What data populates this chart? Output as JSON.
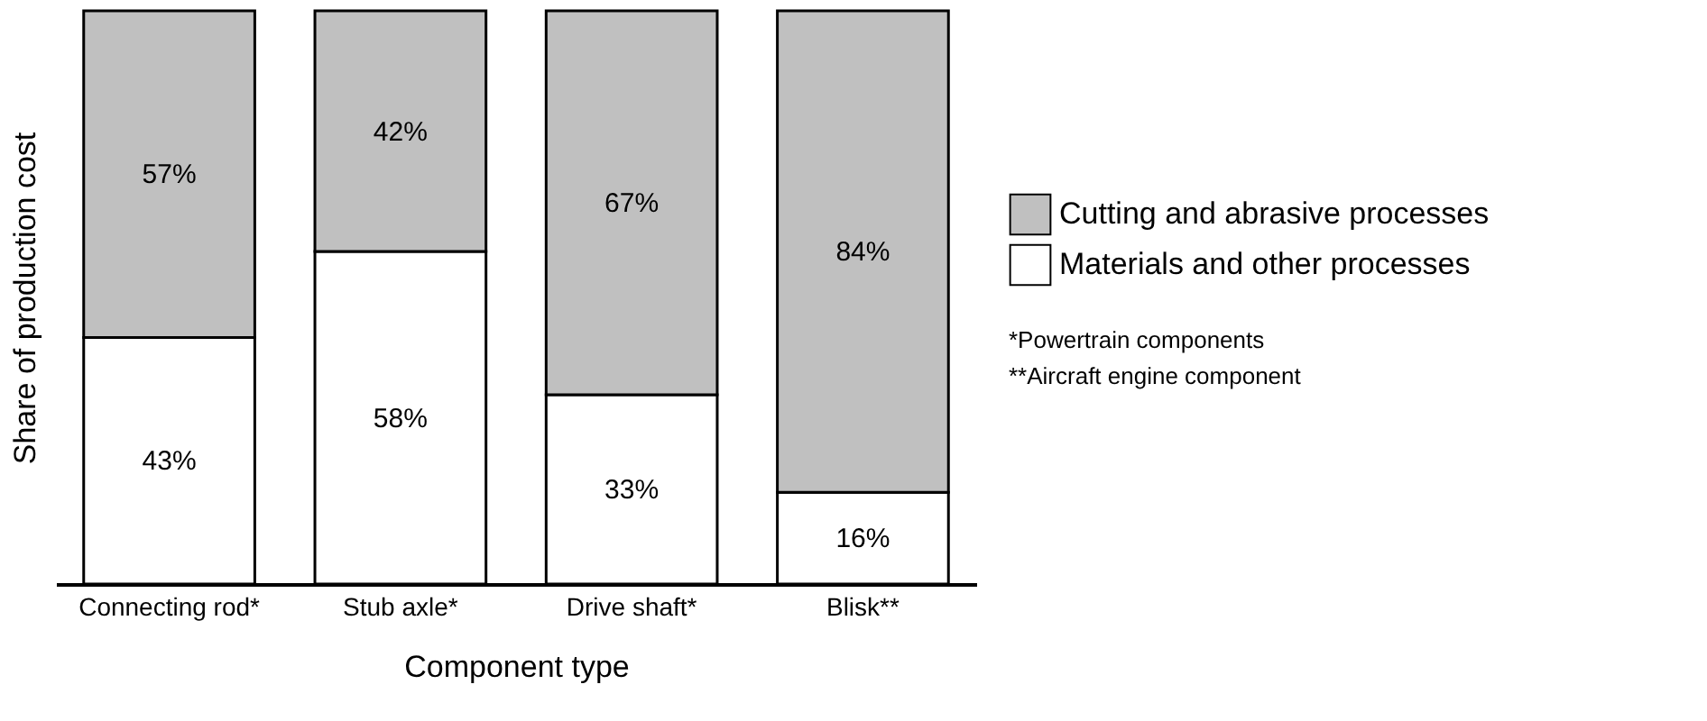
{
  "chart_data": {
    "type": "bar",
    "stacked": true,
    "xlabel": "Component type",
    "ylabel": "Share of production cost",
    "categories": [
      "Connecting rod*",
      "Stub axle*",
      "Drive shaft*",
      "Blisk**"
    ],
    "series": [
      {
        "name": "Materials and other processes",
        "color": "#ffffff",
        "values": [
          43,
          58,
          33,
          16
        ],
        "value_labels": [
          "43%",
          "58%",
          "33%",
          "16%"
        ]
      },
      {
        "name": "Cutting and abrasive processes",
        "color": "#c0c0c0",
        "values": [
          57,
          42,
          67,
          84
        ],
        "value_labels": [
          "57%",
          "42%",
          "67%",
          "84%"
        ]
      }
    ],
    "ylim": [
      0,
      100
    ],
    "grid": false,
    "legend": "right",
    "annotations": [
      "*Powertrain components",
      "**Aircraft engine component"
    ]
  }
}
